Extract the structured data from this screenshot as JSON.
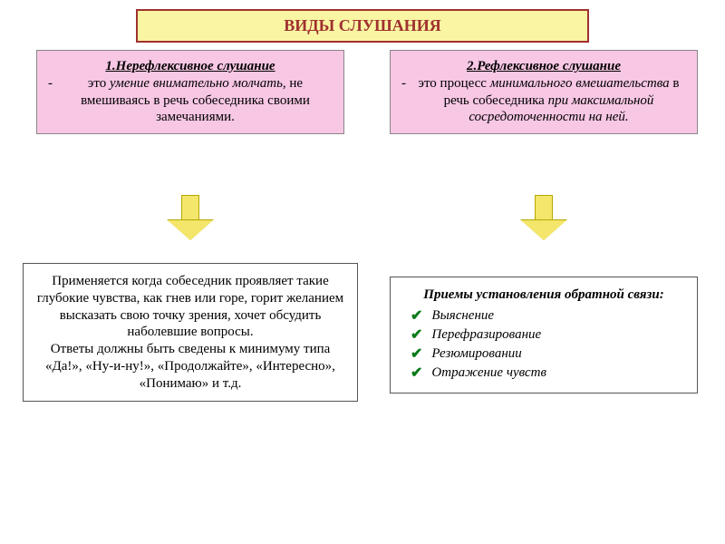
{
  "title": "ВИДЫ СЛУШАНИЯ",
  "colors": {
    "title_bg": "#f9f5a2",
    "title_border": "#a03030",
    "title_text": "#a03030",
    "pink_bg": "#f7c7e4",
    "arrow_fill": "#f4e66a",
    "arrow_border": "#b5a800",
    "check_color": "#0a7a1a",
    "box_border": "#555555",
    "page_bg": "#ffffff"
  },
  "left": {
    "heading": "1.Нерефлексивное слушание",
    "text_prefix": "это ",
    "text_italic": "умение внимательно молчать",
    "text_rest": ", не вмешиваясь в речь собеседника своими замечаниями.",
    "info": "Применяется когда собеседник проявляет такие глубокие чувства, как гнев или горе, горит желанием высказать свою точку зрения, хочет обсудить наболевшие вопросы.\nОтветы должны быть сведены к минимуму типа «Да!», «Ну-и-ну!», «Продолжайте», «Интересно», «Понимаю» и т.д."
  },
  "right": {
    "heading": "2.Рефлексивное слушание",
    "text_prefix": "это процесс ",
    "text_italic1": "минимального вмешательства",
    "text_mid": " в речь собеседника ",
    "text_italic2": "при максимальной сосредоточенности на ней.",
    "info_title": "Приемы установления обратной связи:",
    "items": [
      "Выяснение",
      "Перефразирование",
      "Резюмировании",
      "Отражение чувств"
    ]
  }
}
